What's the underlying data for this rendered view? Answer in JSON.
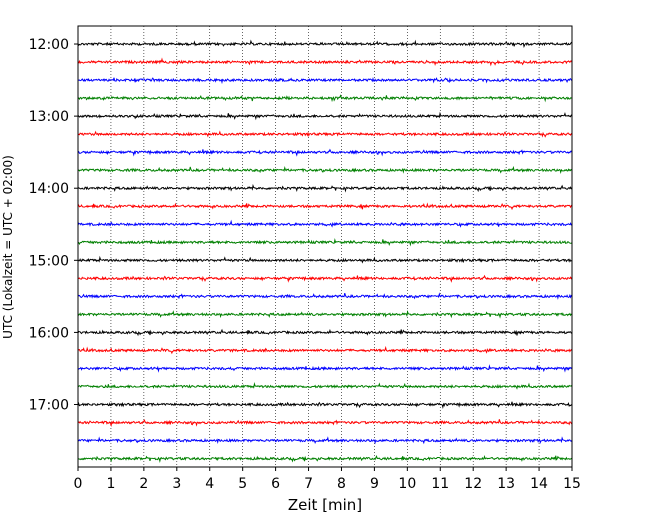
{
  "chart_data": {
    "type": "line",
    "title": "",
    "xlabel": "Zeit  [min]",
    "ylabel": "UTC (Lokalzeit = UTC + 02:00)",
    "xlim": [
      0,
      15
    ],
    "x_ticks": [
      "0",
      "1",
      "2",
      "3",
      "4",
      "5",
      "6",
      "7",
      "8",
      "9",
      "10",
      "11",
      "12",
      "13",
      "14",
      "15"
    ],
    "ylim": [
      "11:45",
      "17:52"
    ],
    "y_ticks": [
      "12:00",
      "13:00",
      "14:00",
      "15:00",
      "16:00",
      "17:00"
    ],
    "trace_interval_min": 15,
    "grid": "vertical-dotted",
    "colors": [
      "#000000",
      "#ff0000",
      "#0000ff",
      "#008000"
    ],
    "traces": [
      {
        "start": "12:00",
        "color": "#000000"
      },
      {
        "start": "12:15",
        "color": "#ff0000"
      },
      {
        "start": "12:30",
        "color": "#0000ff"
      },
      {
        "start": "12:45",
        "color": "#008000"
      },
      {
        "start": "13:00",
        "color": "#000000"
      },
      {
        "start": "13:15",
        "color": "#ff0000"
      },
      {
        "start": "13:30",
        "color": "#0000ff"
      },
      {
        "start": "13:45",
        "color": "#008000"
      },
      {
        "start": "14:00",
        "color": "#000000"
      },
      {
        "start": "14:15",
        "color": "#ff0000"
      },
      {
        "start": "14:30",
        "color": "#0000ff"
      },
      {
        "start": "14:45",
        "color": "#008000"
      },
      {
        "start": "15:00",
        "color": "#000000"
      },
      {
        "start": "15:15",
        "color": "#ff0000"
      },
      {
        "start": "15:30",
        "color": "#0000ff"
      },
      {
        "start": "15:45",
        "color": "#008000"
      },
      {
        "start": "16:00",
        "color": "#000000"
      },
      {
        "start": "16:15",
        "color": "#ff0000"
      },
      {
        "start": "16:30",
        "color": "#0000ff"
      },
      {
        "start": "16:45",
        "color": "#008000"
      },
      {
        "start": "17:00",
        "color": "#000000"
      },
      {
        "start": "17:15",
        "color": "#ff0000"
      },
      {
        "start": "17:30",
        "color": "#0000ff"
      },
      {
        "start": "17:45",
        "color": "#008000"
      }
    ]
  }
}
